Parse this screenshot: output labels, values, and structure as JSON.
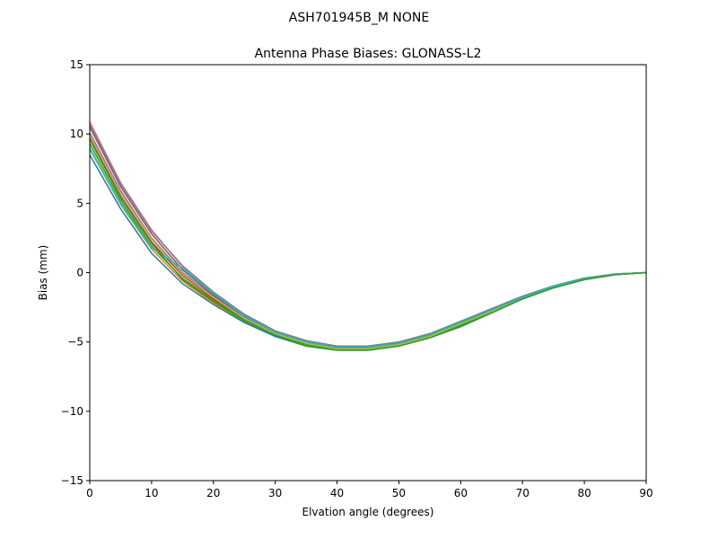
{
  "chart_data": {
    "type": "line",
    "suptitle": "ASH701945B_M    NONE",
    "title": "Antenna Phase Biases: GLONASS-L2",
    "xlabel": "Elvation angle (degrees)",
    "ylabel": "Bias (mm)",
    "xlim": [
      0,
      90
    ],
    "ylim": [
      -15,
      15
    ],
    "xticks": [
      "0",
      "10",
      "20",
      "30",
      "40",
      "50",
      "60",
      "70",
      "80",
      "90"
    ],
    "yticks": [
      "15",
      "10",
      "5",
      "0",
      "−5",
      "−10",
      "−15"
    ],
    "grid": false,
    "x": [
      0,
      5,
      10,
      15,
      20,
      25,
      30,
      35,
      40,
      45,
      50,
      55,
      60,
      65,
      70,
      75,
      80,
      85,
      90
    ],
    "series": [
      {
        "color": "#1f77b4",
        "values": [
          8.5,
          4.6,
          1.4,
          -0.8,
          -2.3,
          -3.6,
          -4.6,
          -5.3,
          -5.6,
          -5.6,
          -5.3,
          -4.7,
          -3.9,
          -2.9,
          -1.9,
          -1.1,
          -0.5,
          -0.15,
          0.0
        ]
      },
      {
        "color": "#ff7f0e",
        "values": [
          8.9,
          4.9,
          1.7,
          -0.6,
          -2.2,
          -3.5,
          -4.5,
          -5.2,
          -5.6,
          -5.6,
          -5.3,
          -4.7,
          -3.8,
          -2.9,
          -1.9,
          -1.1,
          -0.5,
          -0.15,
          0.0
        ]
      },
      {
        "color": "#2ca02c",
        "values": [
          9.3,
          5.2,
          1.9,
          -0.4,
          -2.0,
          -3.4,
          -4.5,
          -5.2,
          -5.5,
          -5.5,
          -5.2,
          -4.6,
          -3.8,
          -2.8,
          -1.9,
          -1.1,
          -0.5,
          -0.15,
          0.0
        ]
      },
      {
        "color": "#d62728",
        "values": [
          9.7,
          5.5,
          2.2,
          -0.2,
          -1.9,
          -3.3,
          -4.4,
          -5.1,
          -5.5,
          -5.5,
          -5.2,
          -4.6,
          -3.7,
          -2.8,
          -1.8,
          -1.0,
          -0.45,
          -0.12,
          0.0
        ]
      },
      {
        "color": "#9467bd",
        "values": [
          10.1,
          5.9,
          2.5,
          0.0,
          -1.7,
          -3.2,
          -4.3,
          -5.1,
          -5.4,
          -5.4,
          -5.1,
          -4.5,
          -3.7,
          -2.7,
          -1.8,
          -1.0,
          -0.4,
          -0.1,
          0.0
        ]
      },
      {
        "color": "#8c564b",
        "values": [
          10.5,
          6.2,
          2.8,
          0.2,
          -1.6,
          -3.1,
          -4.3,
          -5.0,
          -5.4,
          -5.4,
          -5.1,
          -4.5,
          -3.6,
          -2.7,
          -1.8,
          -1.0,
          -0.4,
          -0.1,
          0.0
        ]
      },
      {
        "color": "#e377c2",
        "values": [
          10.9,
          6.5,
          3.1,
          0.4,
          -1.5,
          -3.0,
          -4.2,
          -5.0,
          -5.3,
          -5.3,
          -5.0,
          -4.4,
          -3.6,
          -2.6,
          -1.7,
          -0.95,
          -0.4,
          -0.1,
          0.0
        ]
      },
      {
        "color": "#7f7f7f",
        "values": [
          10.7,
          6.4,
          3.0,
          0.5,
          -1.4,
          -3.0,
          -4.2,
          -4.9,
          -5.3,
          -5.3,
          -5.0,
          -4.4,
          -3.5,
          -2.6,
          -1.7,
          -0.95,
          -0.4,
          -0.1,
          0.0
        ]
      },
      {
        "color": "#bcbd22",
        "values": [
          9.9,
          5.7,
          2.4,
          -0.1,
          -1.8,
          -3.3,
          -4.4,
          -5.1,
          -5.5,
          -5.5,
          -5.2,
          -4.6,
          -3.7,
          -2.8,
          -1.8,
          -1.05,
          -0.45,
          -0.12,
          0.0
        ]
      },
      {
        "color": "#17becf",
        "values": [
          9.0,
          5.0,
          1.8,
          0.3,
          -1.5,
          -3.1,
          -4.3,
          -5.0,
          -5.4,
          -5.4,
          -5.1,
          -4.5,
          -3.6,
          -2.7,
          -1.8,
          -1.0,
          -0.45,
          -0.12,
          0.0
        ]
      },
      {
        "color": "#2ca02c",
        "values": [
          9.6,
          5.4,
          2.1,
          -0.5,
          -2.1,
          -3.5,
          -4.5,
          -5.3,
          -5.6,
          -5.6,
          -5.3,
          -4.7,
          -3.9,
          -2.9,
          -1.9,
          -1.1,
          -0.5,
          -0.15,
          0.0
        ]
      }
    ]
  }
}
